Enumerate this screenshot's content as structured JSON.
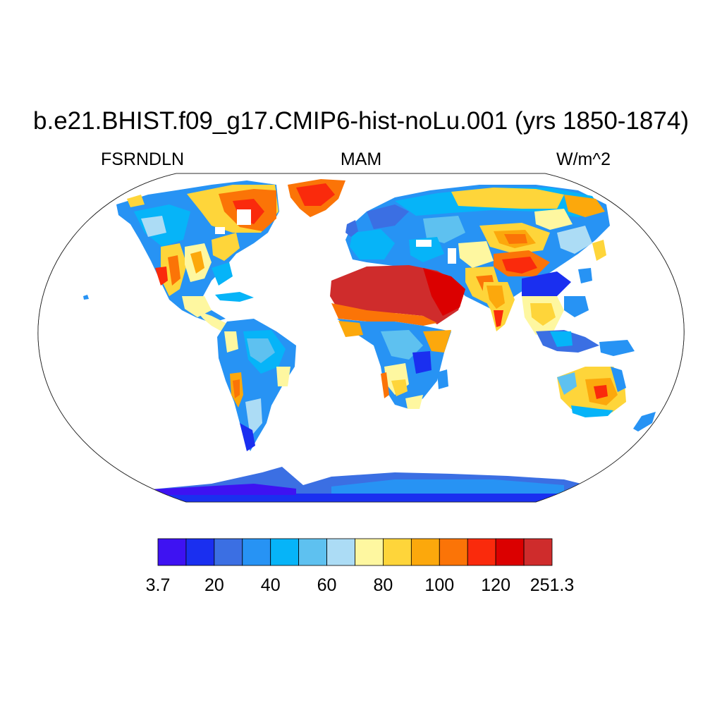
{
  "title": "b.e21.BHIST.f09_g17.CMIP6-hist-noLu.001 (yrs 1850-1874)",
  "left_subtitle": "FSRNDLN",
  "center_subtitle": "MAM",
  "right_subtitle": "W/m^2",
  "colorbar": {
    "tick_labels": [
      "3.7",
      "20",
      "40",
      "60",
      "80",
      "100",
      "120",
      "251.3"
    ],
    "colors": [
      "#3e12f2",
      "#1a2ff0",
      "#3b6fe3",
      "#2793f4",
      "#06b4f8",
      "#5ec1f0",
      "#acdcf5",
      "#fef7a0",
      "#fed53a",
      "#fca80c",
      "#fb7407",
      "#fa2a0c",
      "#db0000",
      "#cf2c2c"
    ]
  }
}
